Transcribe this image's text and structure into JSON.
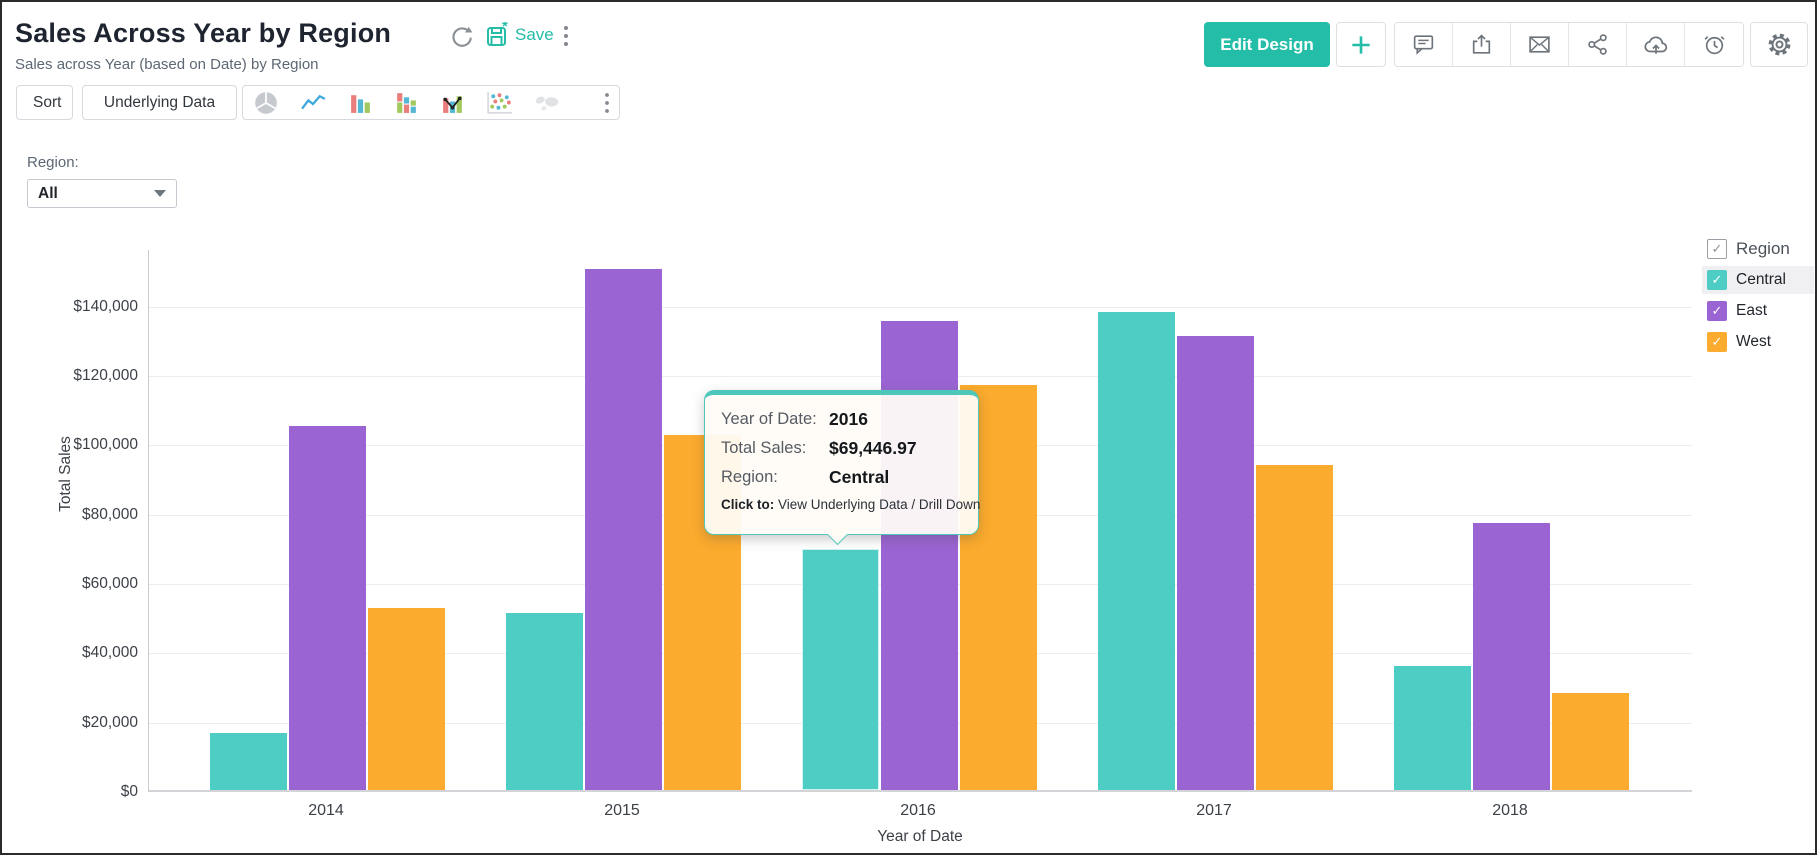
{
  "window": {
    "title": "Sales Across Year by Region",
    "subtitle": "Sales across Year (based on Date) by Region"
  },
  "header": {
    "save_label": "Save",
    "edit_design_label": "Edit Design",
    "icon_names": [
      "refresh-icon",
      "save-icon",
      "more-options-icon",
      "add-icon",
      "comment-icon",
      "export-icon",
      "email-icon",
      "share-icon",
      "publish-cloud-icon",
      "schedule-alarm-icon",
      "settings-gear-icon"
    ]
  },
  "toolbar": {
    "sort_label": "Sort",
    "underlying_data_label": "Underlying Data",
    "chart_icons": [
      "pie-chart-icon",
      "line-chart-icon",
      "bar-chart-icon",
      "stacked-bar-chart-icon",
      "combo-chart-icon",
      "scatter-chart-icon",
      "map-chart-icon"
    ]
  },
  "filter": {
    "label": "Region:",
    "value": "All"
  },
  "colors": {
    "accent": "#24bda7",
    "central": "#4ecdc4",
    "east": "#9b64d3",
    "west": "#fbab2d"
  },
  "legend": {
    "title": "Region",
    "items": [
      {
        "label": "Central",
        "color": "#4ecdc4",
        "checked": true,
        "highlighted": true
      },
      {
        "label": "East",
        "color": "#9b64d3",
        "checked": true,
        "highlighted": false
      },
      {
        "label": "West",
        "color": "#fbab2d",
        "checked": true,
        "highlighted": false
      }
    ]
  },
  "tooltip": {
    "rows": [
      {
        "label": "Year of Date:",
        "value": "2016"
      },
      {
        "label": "Total Sales:",
        "value": "$69,446.97"
      },
      {
        "label": "Region:",
        "value": "Central"
      }
    ],
    "footer_label": "Click to:",
    "footer_text": " View Underlying Data / Drill Down"
  },
  "chart_data": {
    "type": "bar",
    "title": "Sales Across Year by Region",
    "xlabel": "Year of Date",
    "ylabel": "Total Sales",
    "categories": [
      "2014",
      "2015",
      "2016",
      "2017",
      "2018"
    ],
    "series": [
      {
        "name": "Central",
        "color": "#4ecdc4",
        "values": [
          16500,
          51000,
          69446.97,
          138000,
          35800
        ]
      },
      {
        "name": "East",
        "color": "#9b64d3",
        "values": [
          105000,
          150200,
          135300,
          131100,
          77000
        ]
      },
      {
        "name": "West",
        "color": "#fbab2d",
        "values": [
          52500,
          102300,
          116800,
          93700,
          28000
        ]
      }
    ],
    "highlighted_point": {
      "category": "2016",
      "series": "Central",
      "value_label": "$69,446.97"
    },
    "ylim": [
      0,
      156500
    ],
    "yticks": [
      0,
      20000,
      40000,
      60000,
      80000,
      100000,
      120000,
      140000
    ],
    "ytick_labels": [
      "$0",
      "$20,000",
      "$40,000",
      "$60,000",
      "$80,000",
      "$100,000",
      "$120,000",
      "$140,000"
    ],
    "grid": true,
    "legend_position": "right"
  }
}
